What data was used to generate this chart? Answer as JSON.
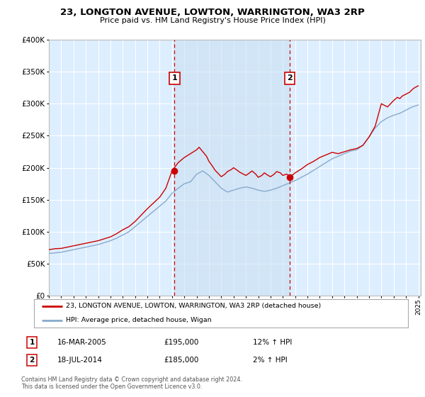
{
  "title": "23, LONGTON AVENUE, LOWTON, WARRINGTON, WA3 2RP",
  "subtitle": "Price paid vs. HM Land Registry's House Price Index (HPI)",
  "ylim": [
    0,
    400000
  ],
  "yticks": [
    0,
    50000,
    100000,
    150000,
    200000,
    250000,
    300000,
    350000,
    400000
  ],
  "ytick_labels": [
    "£0",
    "£50K",
    "£100K",
    "£150K",
    "£200K",
    "£250K",
    "£300K",
    "£350K",
    "£400K"
  ],
  "xlim_start": 1995.0,
  "xlim_end": 2025.2,
  "background_color": "#ffffff",
  "plot_bg_color": "#ddeeff",
  "grid_color": "#ffffff",
  "red_line_color": "#cc0000",
  "blue_line_color": "#88aacc",
  "vline_color": "#cc0000",
  "vline1_x": 2005.2,
  "vline2_x": 2014.55,
  "transaction1_date": "16-MAR-2005",
  "transaction1_price": "£195,000",
  "transaction1_hpi": "12% ↑ HPI",
  "transaction2_date": "18-JUL-2014",
  "transaction2_price": "£185,000",
  "transaction2_hpi": "2% ↑ HPI",
  "transaction1_y": 195000,
  "transaction2_y": 185000,
  "legend_line1": "23, LONGTON AVENUE, LOWTON, WARRINGTON, WA3 2RP (detached house)",
  "legend_line2": "HPI: Average price, detached house, Wigan",
  "footer": "Contains HM Land Registry data © Crown copyright and database right 2024.\nThis data is licensed under the Open Government Licence v3.0.",
  "hpi_years": [
    1995,
    1995.5,
    1996,
    1996.5,
    1997,
    1997.5,
    1998,
    1998.5,
    1999,
    1999.5,
    2000,
    2000.5,
    2001,
    2001.5,
    2002,
    2002.5,
    2003,
    2003.5,
    2004,
    2004.5,
    2005,
    2005.5,
    2006,
    2006.5,
    2007,
    2007.5,
    2008,
    2008.5,
    2009,
    2009.5,
    2010,
    2010.5,
    2011,
    2011.5,
    2012,
    2012.5,
    2013,
    2013.5,
    2014,
    2014.5,
    2015,
    2015.5,
    2016,
    2016.5,
    2017,
    2017.5,
    2018,
    2018.5,
    2019,
    2019.5,
    2020,
    2020.5,
    2021,
    2021.5,
    2022,
    2022.5,
    2023,
    2023.5,
    2024,
    2024.5,
    2025
  ],
  "hpi_values": [
    66000,
    67000,
    68000,
    70000,
    72000,
    74000,
    76000,
    78000,
    80000,
    83000,
    86000,
    90000,
    95000,
    100000,
    108000,
    116000,
    124000,
    132000,
    140000,
    148000,
    160000,
    168000,
    175000,
    178000,
    190000,
    195000,
    188000,
    178000,
    168000,
    162000,
    165000,
    168000,
    170000,
    168000,
    165000,
    163000,
    165000,
    168000,
    172000,
    176000,
    180000,
    185000,
    190000,
    196000,
    202000,
    208000,
    214000,
    218000,
    222000,
    226000,
    228000,
    235000,
    248000,
    262000,
    272000,
    278000,
    282000,
    285000,
    290000,
    295000,
    298000
  ],
  "red_years": [
    1995,
    1995.5,
    1996,
    1996.5,
    1997,
    1997.5,
    1998,
    1998.5,
    1999,
    1999.5,
    2000,
    2000.5,
    2001,
    2001.5,
    2002,
    2002.5,
    2003,
    2003.5,
    2004,
    2004.5,
    2005,
    2005.5,
    2006,
    2006.5,
    2007,
    2007.2,
    2007.5,
    2007.8,
    2008,
    2008.3,
    2008.5,
    2008.8,
    2009,
    2009.3,
    2009.5,
    2009.8,
    2010,
    2010.3,
    2010.5,
    2010.8,
    2011,
    2011.3,
    2011.5,
    2011.8,
    2012,
    2012.3,
    2012.5,
    2012.8,
    2013,
    2013.3,
    2013.5,
    2013.8,
    2014,
    2014.3,
    2014.5,
    2014.55,
    2015,
    2015.5,
    2016,
    2016.5,
    2017,
    2017.5,
    2018,
    2018.5,
    2019,
    2019.5,
    2020,
    2020.5,
    2021,
    2021.5,
    2022,
    2022.5,
    2023,
    2023.3,
    2023.5,
    2023.7,
    2024,
    2024.3,
    2024.5,
    2024.7,
    2025
  ],
  "red_values": [
    72000,
    73500,
    74000,
    76000,
    78000,
    80000,
    82000,
    84000,
    86000,
    89000,
    92000,
    97000,
    103000,
    108000,
    116000,
    126000,
    136000,
    145000,
    154000,
    168000,
    195000,
    208000,
    216000,
    222000,
    228000,
    232000,
    225000,
    218000,
    210000,
    202000,
    196000,
    190000,
    186000,
    190000,
    194000,
    197000,
    200000,
    196000,
    193000,
    190000,
    188000,
    192000,
    195000,
    190000,
    185000,
    188000,
    192000,
    188000,
    186000,
    190000,
    194000,
    192000,
    188000,
    190000,
    188000,
    185000,
    192000,
    198000,
    205000,
    210000,
    216000,
    220000,
    224000,
    222000,
    225000,
    228000,
    230000,
    235000,
    248000,
    265000,
    300000,
    295000,
    305000,
    310000,
    308000,
    312000,
    315000,
    318000,
    322000,
    325000,
    328000
  ]
}
